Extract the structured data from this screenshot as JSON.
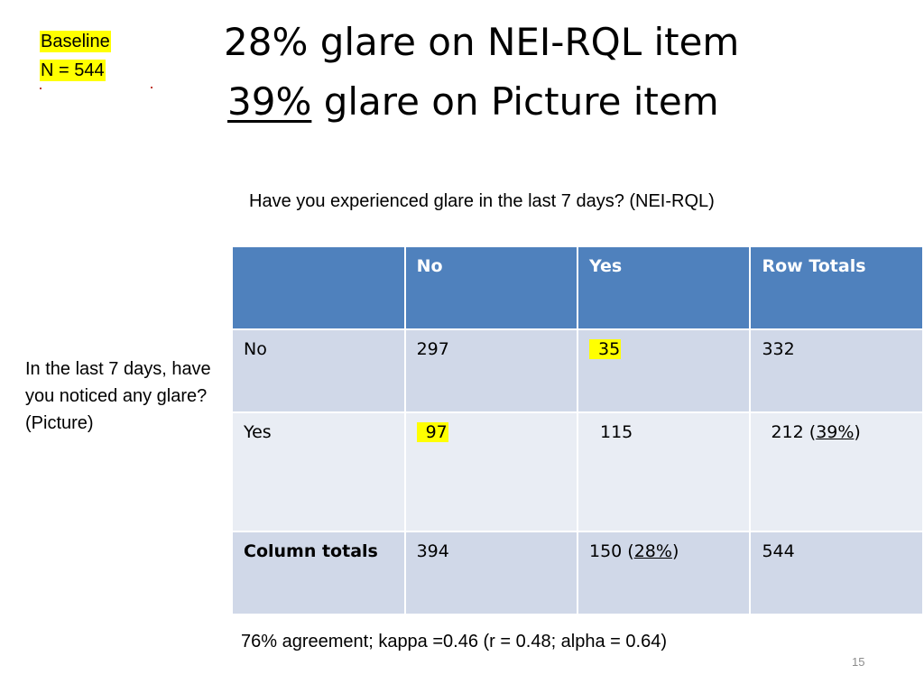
{
  "badge": {
    "line1": "Baseline",
    "line2": "N = 544"
  },
  "title": {
    "line1": "28% glare on NEI-RQL item",
    "line2_pct": "39%",
    "line2_rest": " glare on Picture item"
  },
  "column_question": "Have you experienced glare in the last 7 days? (NEI-RQL)",
  "row_question": "In the last 7 days, have you noticed any glare? (Picture)",
  "table": {
    "headers": [
      "",
      "No",
      "Yes",
      "Row Totals"
    ],
    "rows": [
      {
        "label": "No",
        "no": "297",
        "yes": "35",
        "total": "332"
      },
      {
        "label": "Yes",
        "no": "97",
        "yes": "115",
        "total_value": "212 (",
        "total_pct": "39%",
        "total_close": ")"
      },
      {
        "label": "Column totals",
        "no": "394",
        "yes_value": "150 (",
        "yes_pct": "28%",
        "yes_close": ")",
        "total": "544"
      }
    ]
  },
  "footer": "76% agreement; kappa =0.46 (r = 0.48; alpha = 0.64)",
  "page_number": "15",
  "colors": {
    "header_blue": "#4f81bd",
    "row_dark": "#d0d8e8",
    "row_light": "#e9edf4",
    "highlight": "#ffff00"
  }
}
